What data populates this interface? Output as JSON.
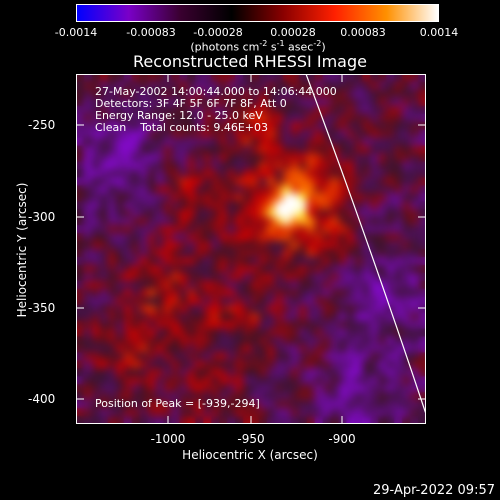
{
  "colorbar": {
    "ticks": [
      "-0.0014",
      "-0.00083",
      "-0.00028",
      "0.00028",
      "0.00083",
      "0.0014"
    ],
    "units_prefix": "(photons cm",
    "units_exp1": "-2",
    "units_mid": " s",
    "units_exp2": "-1",
    "units_mid2": " asec",
    "units_exp3": "-2",
    "units_suffix": ")",
    "colors": [
      "#0000ff",
      "#7a00c8",
      "#3a0030",
      "#000000",
      "#8a0000",
      "#ff2000",
      "#ff9000",
      "#ffffff"
    ]
  },
  "title": "Reconstructed RHESSI Image",
  "info": {
    "line1": "27-May-2002 14:00:44.000 to 14:06:44.000",
    "line2": "Detectors: 3F 4F 5F 6F 7F 8F, Att 0",
    "line3": "Energy Range: 12.0 - 25.0 keV",
    "line4": "Clean    Total counts: 9.46E+03"
  },
  "peak_text": "Position of Peak = [-939,-294]",
  "axes": {
    "xlabel": "Heliocentric X (arcsec)",
    "ylabel": "Heliocentric Y (arcsec)",
    "xticks": [
      "-1000",
      "-950",
      "-900"
    ],
    "yticks": [
      "-250",
      "-300",
      "-350",
      "-400"
    ],
    "xlim": [
      -1050,
      -863
    ],
    "ylim": [
      -413,
      -223
    ]
  },
  "image_data": {
    "peak_position_arcsec": [
      -939,
      -294
    ],
    "colormap": "blue-purple-black-red-yellow-white"
  },
  "timestamp": "29-Apr-2022 09:57"
}
